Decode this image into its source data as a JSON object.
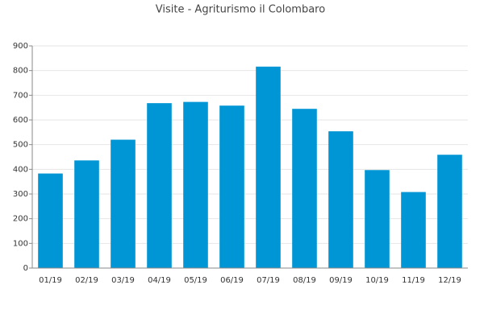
{
  "chart_data": {
    "type": "bar",
    "title": "Visite - Agriturismo il Colombaro",
    "categories": [
      "01/19",
      "02/19",
      "03/19",
      "04/19",
      "05/19",
      "06/19",
      "07/19",
      "08/19",
      "09/19",
      "10/19",
      "11/19",
      "12/19"
    ],
    "values": [
      383,
      436,
      520,
      668,
      673,
      658,
      816,
      645,
      554,
      397,
      308,
      459
    ],
    "color": "#0095d4",
    "ylim": [
      0,
      900
    ],
    "yticks": [
      0,
      100,
      200,
      300,
      400,
      500,
      600,
      700,
      800,
      900
    ],
    "grid": true
  }
}
